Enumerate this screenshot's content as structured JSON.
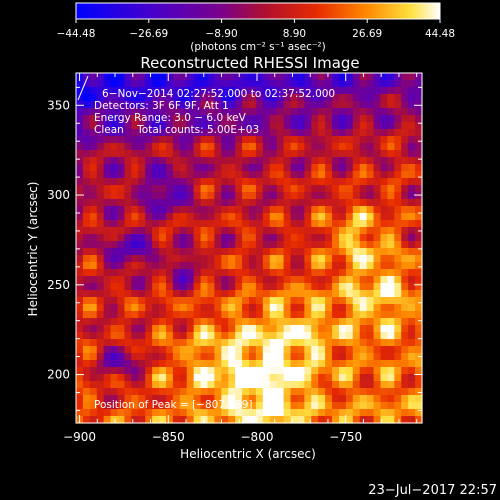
{
  "chart_data": {
    "type": "heatmap",
    "title": "Reconstructed RHESSI Image",
    "xlabel": "Heliocentric X (arcsec)",
    "ylabel": "Heliocentric Y (arcsec)",
    "xlim": [
      -902,
      -707
    ],
    "ylim": [
      173,
      368
    ],
    "x_ticks": [
      -900,
      -850,
      -800,
      -750
    ],
    "x_tick_labels": [
      "−900",
      "−850",
      "−800",
      "−750"
    ],
    "y_ticks": [
      200,
      250,
      300,
      350
    ],
    "y_tick_labels": [
      "200",
      "250",
      "300",
      "350"
    ],
    "colorbar": {
      "range": [
        -44.48,
        44.48
      ],
      "ticks": [
        -44.48,
        -26.69,
        -8.9,
        8.9,
        26.69,
        44.48
      ],
      "tick_labels": [
        "−44.48",
        "−26.69",
        "−8.90",
        "8.90",
        "26.69",
        "44.48"
      ],
      "unit_label": "(photons cm⁻² s⁻¹ asec⁻²)"
    },
    "info_lines": [
      "6−Nov−2014 02:27:52.000 to 02:37:52.000",
      "Detectors: 3F 6F 9F, Att 1",
      "Energy Range: 3.0 − 6.0 keV",
      "Clean    Total counts: 5.00E+03"
    ],
    "peak_label": "Position of Peak = [−807,189]",
    "peak": [
      -807,
      189
    ],
    "grid": false
  },
  "footer": {
    "timestamp": "23−Jul−2017 22:57"
  },
  "colors": {
    "background": "#000000",
    "text": "#ffffff"
  }
}
